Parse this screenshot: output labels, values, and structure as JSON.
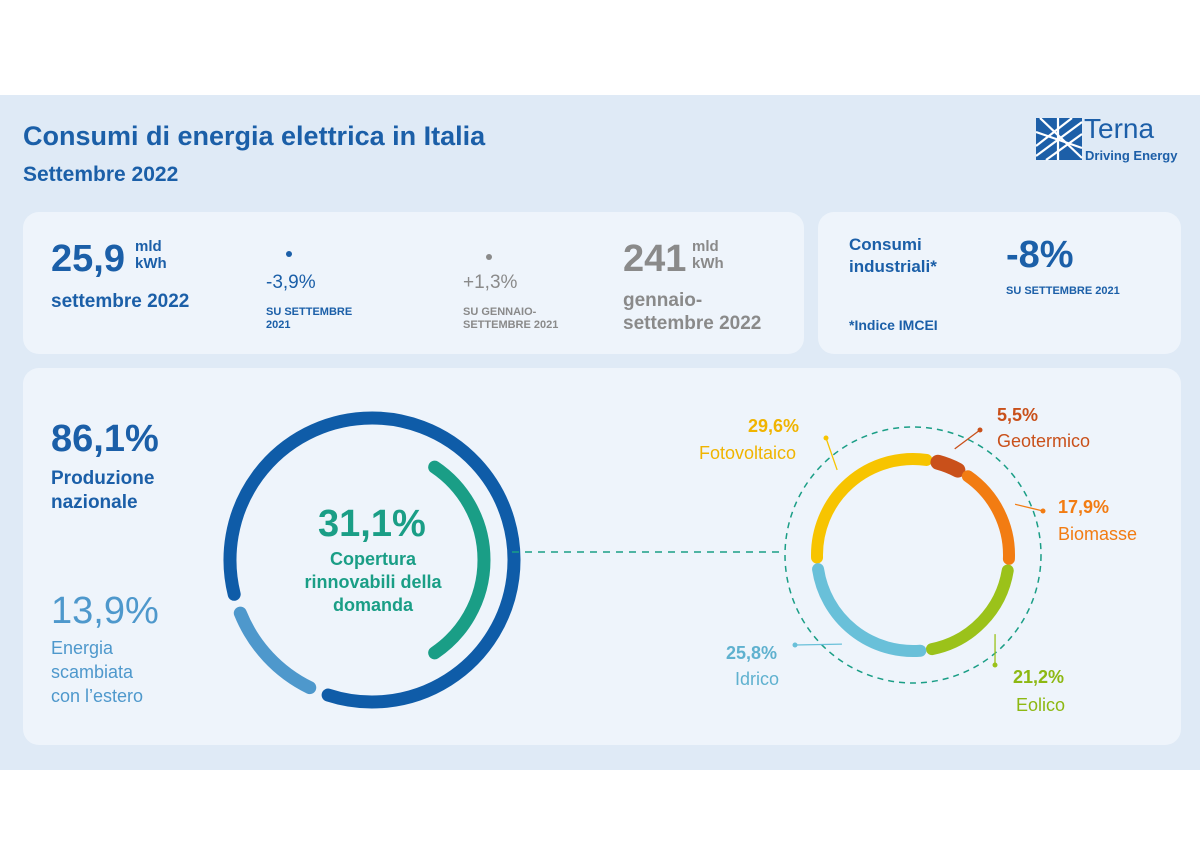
{
  "header": {
    "title": "Consumi di energia elettrica in Italia",
    "subtitle": "Settembre 2022",
    "logo_name": "Terna",
    "logo_tagline": "Driving Energy"
  },
  "kpi_month": {
    "value": "25,9",
    "unit_top": "mld",
    "unit_bottom": "kWh",
    "label": "settembre 2022",
    "change": "-3,9%",
    "change_ref_line1": "SU SETTEMBRE",
    "change_ref_line2": "2021"
  },
  "kpi_ytd": {
    "value": "241",
    "unit_top": "mld",
    "unit_bottom": "kWh",
    "label_line1": "gennaio-",
    "label_line2": "settembre 2022",
    "change": "+1,3%",
    "change_ref_line1": "SU GENNAIO-",
    "change_ref_line2": "SETTEMBRE 2021"
  },
  "kpi_industrial": {
    "label_line1": "Consumi",
    "label_line2": "industriali*",
    "change": "-8%",
    "change_ref": "SU SETTEMBRE 2021",
    "note": "*Indice IMCEI"
  },
  "demand": {
    "national_pct": "86,1%",
    "national_label_line1": "Produzione",
    "national_label_line2": "nazionale",
    "exchange_pct": "13,9%",
    "exchange_label_line1": "Energia",
    "exchange_label_line2": "scambiata",
    "exchange_label_line3": "con l’estero",
    "renewable_pct": "31,1%",
    "renewable_label_line1": "Copertura",
    "renewable_label_line2": "rinnovabili della",
    "renewable_label_line3": "domanda"
  },
  "colors": {
    "national": "#0f5ca8",
    "exchange": "#4e98cc",
    "renewable": "#1a9e86",
    "fotovoltaico": "#f7c400",
    "geotermico": "#c9501a",
    "biomasse": "#f27c12",
    "eolico": "#9bc21a",
    "idrico": "#69c0d9"
  },
  "chart_data": [
    {
      "type": "pie",
      "title": "",
      "slices": [
        {
          "label": "Produzione nazionale",
          "value": 86.1
        },
        {
          "label": "Energia scambiata con l’estero",
          "value": 13.9
        }
      ],
      "inner_series": [
        {
          "label": "Copertura rinnovabili della domanda",
          "value": 31.1
        }
      ]
    },
    {
      "type": "pie",
      "title": "",
      "slices": [
        {
          "label": "Fotovoltaico",
          "value": 29.6,
          "display": "29,6%"
        },
        {
          "label": "Geotermico",
          "value": 5.5,
          "display": "5,5%"
        },
        {
          "label": "Biomasse",
          "value": 17.9,
          "display": "17,9%"
        },
        {
          "label": "Eolico",
          "value": 21.2,
          "display": "21,2%"
        },
        {
          "label": "Idrico",
          "value": 25.8,
          "display": "25,8%"
        }
      ]
    }
  ]
}
